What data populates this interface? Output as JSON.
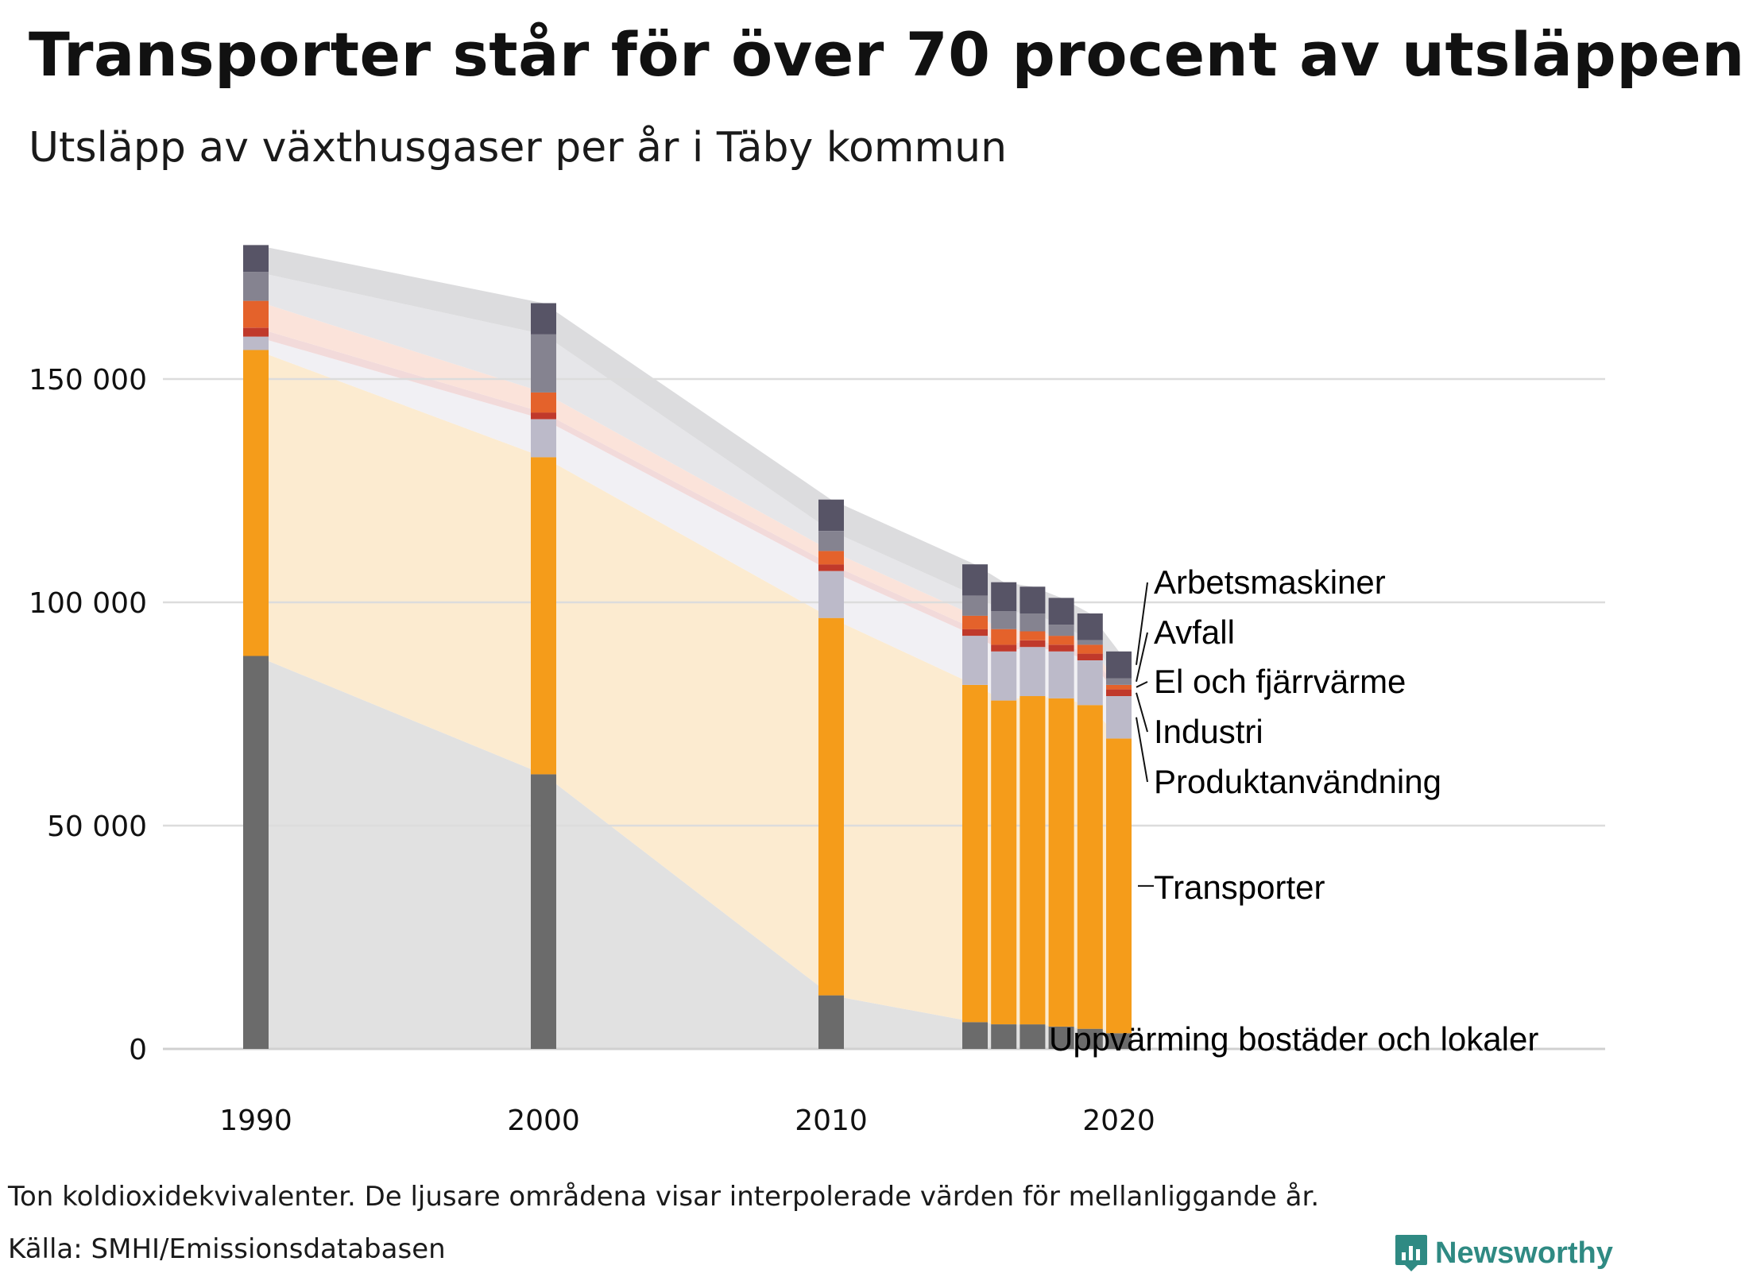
{
  "title": "Transporter står för över 70 procent av utsläppen",
  "subtitle": "Utsläpp av växthusgaser per år i Täby kommun",
  "note": "Ton koldioxidekvivalenter. De ljusare områdena visar interpolerade värden för mellanliggande år.",
  "source": "Källa: SMHI/Emissionsdatabasen",
  "brand": "Newsworthy",
  "colors": {
    "grid": "#dcdcdc",
    "axis": "#cccccc",
    "brand": "#2f8a83"
  },
  "chart_data": {
    "type": "bar",
    "stacked": true,
    "title": "Transporter står för över 70 procent av utsläppen",
    "subtitle": "Utsläpp av växthusgaser per år i Täby kommun",
    "x": [
      1990,
      2000,
      2010,
      2015,
      2016,
      2017,
      2018,
      2019,
      2020
    ],
    "xticks": [
      1990,
      2000,
      2010,
      2020
    ],
    "xlim": [
      1990,
      2020
    ],
    "yticks": [
      0,
      50000,
      100000,
      150000
    ],
    "ytick_labels": [
      "0",
      "50 000",
      "100 000",
      "150 000"
    ],
    "ylim": [
      0,
      180000
    ],
    "grid": true,
    "series": [
      {
        "name": "Uppvärming bostäder och lokaler",
        "color": "#6b6b6b",
        "band_color": "#e1e1e1",
        "values": [
          88000,
          61500,
          12000,
          6000,
          5500,
          5500,
          5000,
          4500,
          3500
        ]
      },
      {
        "name": "Transporter",
        "color": "#f59c1a",
        "band_color": "#fcebd0",
        "values": [
          68500,
          71000,
          84500,
          75500,
          72500,
          73500,
          73500,
          72500,
          66000
        ]
      },
      {
        "name": "Produktanvändning",
        "color": "#bcbac9",
        "band_color": "#f1f0f4",
        "values": [
          3000,
          8500,
          10500,
          11000,
          11000,
          11000,
          10500,
          10000,
          9500
        ]
      },
      {
        "name": "Industri",
        "color": "#c0392b",
        "band_color": "#f2dada",
        "values": [
          2000,
          1500,
          1500,
          1500,
          1500,
          1500,
          1500,
          1500,
          1500
        ]
      },
      {
        "name": "El och fjärrvärme",
        "color": "#e4622b",
        "band_color": "#fbe3da",
        "values": [
          6000,
          4500,
          3000,
          3000,
          3500,
          2000,
          2000,
          2000,
          1000
        ]
      },
      {
        "name": "Avfall",
        "color": "#858390",
        "band_color": "#e6e6e9",
        "values": [
          6500,
          13000,
          4500,
          4500,
          4000,
          4000,
          2500,
          1000,
          1500
        ]
      },
      {
        "name": "Arbetsmaskiner",
        "color": "#575466",
        "band_color": "#dcdcde",
        "values": [
          6000,
          7000,
          7000,
          7000,
          6500,
          6000,
          6000,
          6000,
          6000
        ]
      }
    ]
  }
}
